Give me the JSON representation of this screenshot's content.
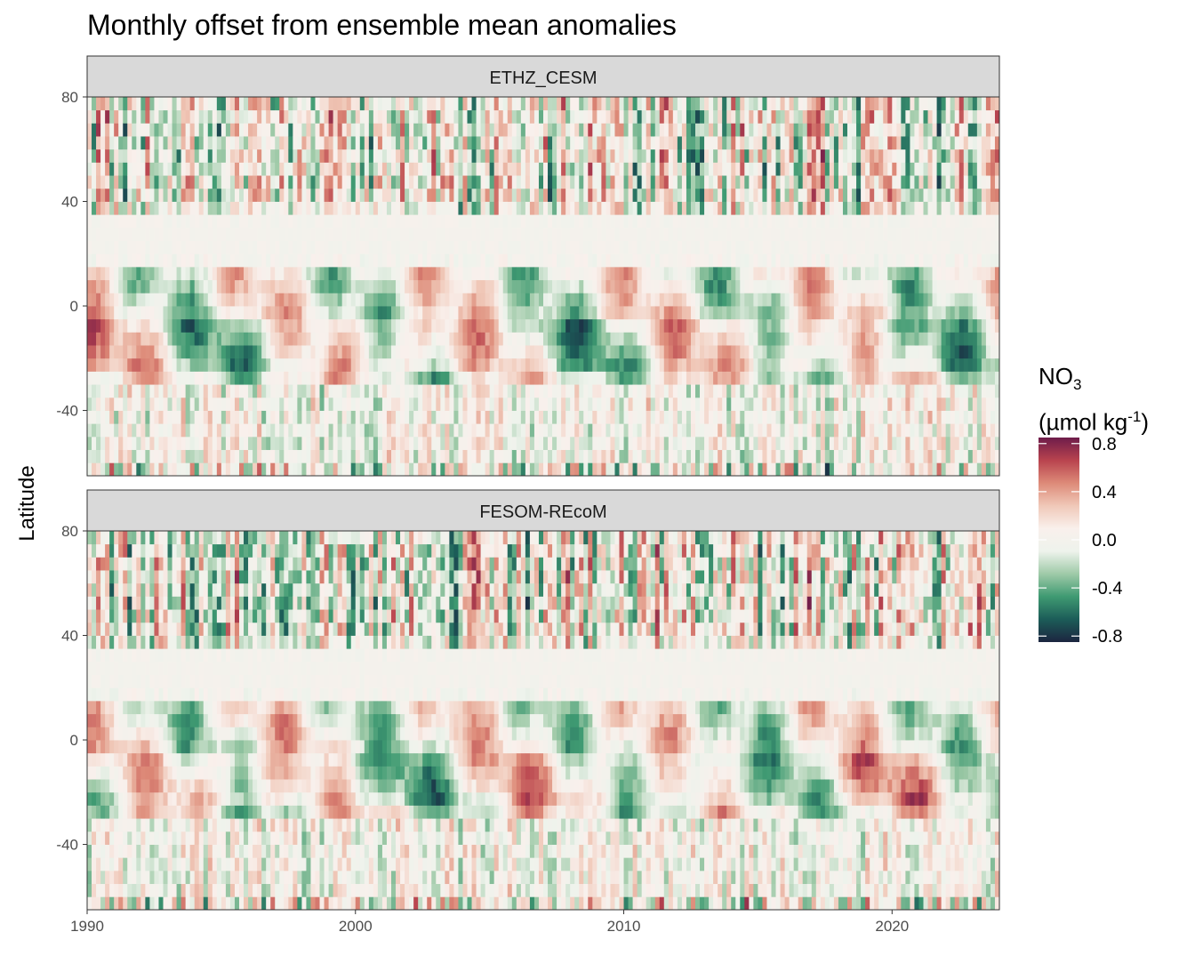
{
  "title": "Monthly offset from ensemble mean anomalies",
  "colors": {
    "scale": [
      "#1c2540",
      "#1c5c58",
      "#3f9a72",
      "#9fcaa8",
      "#eef3ec",
      "#f9f0ec",
      "#f0c8b8",
      "#dd8a78",
      "#b8434e",
      "#6e1c4a"
    ],
    "strip_fill": "#d9d9d9",
    "panel_border": "#333333"
  },
  "chart_data": {
    "type": "heatmap",
    "title": "Monthly offset from ensemble mean anomalies",
    "xlabel": "",
    "ylabel": "Latitude",
    "xlim": [
      1990,
      2024
    ],
    "ylim": [
      -65,
      80
    ],
    "x_ticks": [
      1990,
      2000,
      2010,
      2020
    ],
    "y_ticks": [
      80,
      40,
      0,
      -40
    ],
    "x_tick_labels": [
      "1990",
      "2000",
      "2010",
      "2020"
    ],
    "y_tick_labels": [
      "80",
      "40",
      "0",
      "-40"
    ],
    "grid": false,
    "facets": [
      "ETHZ_CESM",
      "FESOM-REcoM"
    ],
    "colorbar": {
      "title_line1": "NO",
      "title_sub": "3",
      "title_line2_a": "(µmol kg",
      "title_sup": "-1",
      "title_line2_b": ")",
      "range": [
        -0.85,
        0.85
      ],
      "ticks": [
        0.8,
        0.4,
        0.0,
        -0.4,
        -0.8
      ],
      "tick_labels": [
        "0.8",
        "0.4",
        "0.0",
        "-0.4",
        "-0.8"
      ],
      "placement": "right"
    }
  }
}
